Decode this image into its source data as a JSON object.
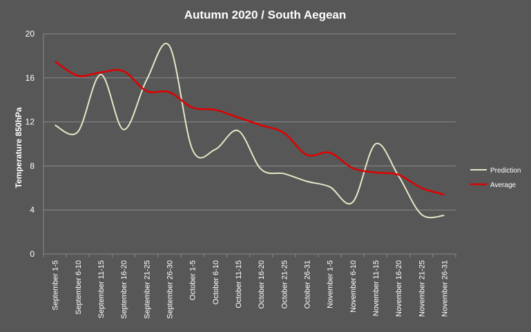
{
  "chart_data": {
    "type": "line",
    "title": "Autumn 2020 / South Aegean",
    "xlabel": "",
    "ylabel": "Temperature 850hPa",
    "ylim": [
      0,
      20
    ],
    "yticks": [
      0,
      4,
      8,
      12,
      16,
      20
    ],
    "grid": true,
    "legend_position": "right",
    "categories": [
      "September 1-5",
      "September 6-10",
      "September 11-15",
      "September 16-20",
      "September 21-25",
      "September 26-30",
      "October 1-5",
      "October 6-10",
      "October 11-15",
      "October 16-20",
      "October 21-25",
      "October 26-31",
      "November 1-5",
      "November 6-10",
      "November 11-15",
      "November 16-20",
      "November 21-25",
      "November 26-31"
    ],
    "series": [
      {
        "name": "Prediction",
        "color": "#e8e8c8",
        "values": [
          11.7,
          11.1,
          16.3,
          11.3,
          15.8,
          18.9,
          9.5,
          9.5,
          11.2,
          7.7,
          7.3,
          6.6,
          6.1,
          4.7,
          10.0,
          7.1,
          3.6,
          3.5
        ]
      },
      {
        "name": "Average",
        "color": "#e00000",
        "values": [
          17.5,
          16.2,
          16.5,
          16.6,
          14.8,
          14.7,
          13.3,
          13.1,
          12.4,
          11.7,
          11.0,
          9.0,
          9.2,
          7.8,
          7.4,
          7.2,
          6.0,
          5.4
        ]
      }
    ]
  }
}
